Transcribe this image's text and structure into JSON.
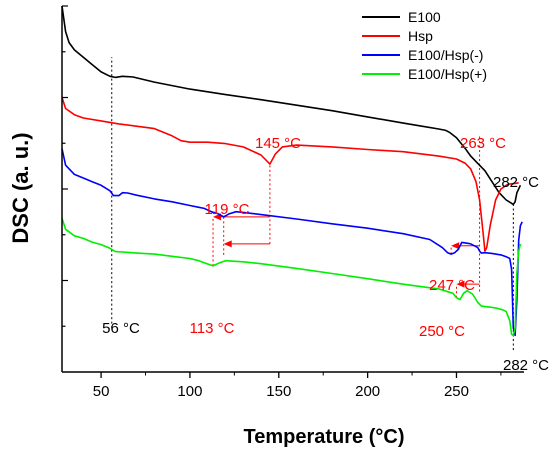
{
  "chart_data": {
    "type": "line",
    "title": "",
    "xlabel": "Temperature (°C)",
    "ylabel": "DSC (a. u.)",
    "xlim": [
      28,
      288
    ],
    "ylim": [
      0,
      100
    ],
    "x_ticks": [
      50,
      100,
      150,
      200,
      250
    ],
    "y_tick_labels_shown": false,
    "grid": false,
    "legend_position": "top-right",
    "series": [
      {
        "name": "E100",
        "color": "#000000",
        "points": [
          [
            28,
            100
          ],
          [
            30,
            93
          ],
          [
            32,
            90
          ],
          [
            35,
            88
          ],
          [
            40,
            86
          ],
          [
            45,
            84
          ],
          [
            50,
            82
          ],
          [
            55,
            80.8
          ],
          [
            58,
            80.5
          ],
          [
            62,
            80.8
          ],
          [
            68,
            80.6
          ],
          [
            80,
            79.2
          ],
          [
            100,
            77.3
          ],
          [
            120,
            75.8
          ],
          [
            140,
            74.4
          ],
          [
            160,
            72.9
          ],
          [
            180,
            71.4
          ],
          [
            200,
            69.7
          ],
          [
            220,
            68
          ],
          [
            240,
            66.4
          ],
          [
            244,
            66
          ],
          [
            246,
            65.5
          ],
          [
            250,
            64
          ],
          [
            255,
            61
          ],
          [
            258,
            59
          ],
          [
            262,
            57
          ],
          [
            266,
            55
          ],
          [
            270,
            52
          ],
          [
            274,
            49
          ],
          [
            278,
            47
          ],
          [
            282,
            45.8
          ],
          [
            283,
            46.5
          ],
          [
            284,
            49
          ],
          [
            286,
            51
          ]
        ]
      },
      {
        "name": "Hsp",
        "color": "#ff0000",
        "points": [
          [
            28,
            75
          ],
          [
            30,
            72
          ],
          [
            35,
            70.3
          ],
          [
            40,
            69.4
          ],
          [
            50,
            68.6
          ],
          [
            60,
            67.8
          ],
          [
            80,
            66.5
          ],
          [
            90,
            64.5
          ],
          [
            95,
            63.2
          ],
          [
            100,
            62.8
          ],
          [
            110,
            62.8
          ],
          [
            120,
            62.4
          ],
          [
            130,
            61.5
          ],
          [
            140,
            59.3
          ],
          [
            145,
            56.8
          ],
          [
            148,
            59.5
          ],
          [
            152,
            61.5
          ],
          [
            160,
            62
          ],
          [
            180,
            61.5
          ],
          [
            200,
            60.8
          ],
          [
            220,
            60.2
          ],
          [
            240,
            59
          ],
          [
            250,
            58.2
          ],
          [
            255,
            57
          ],
          [
            258,
            55.5
          ],
          [
            261,
            52
          ],
          [
            263,
            47
          ],
          [
            265,
            38
          ],
          [
            266,
            33
          ],
          [
            267,
            34
          ],
          [
            269,
            40
          ],
          [
            272,
            47
          ],
          [
            275,
            50
          ],
          [
            278,
            51
          ],
          [
            280,
            51.4
          ],
          [
            283,
            51.5
          ],
          [
            285,
            51.7
          ]
        ]
      },
      {
        "name": "E100/Hsp(-)",
        "color": "#0000ff",
        "points": [
          [
            28,
            61
          ],
          [
            30,
            56.5
          ],
          [
            35,
            54
          ],
          [
            40,
            53
          ],
          [
            45,
            52
          ],
          [
            50,
            51
          ],
          [
            55,
            49.5
          ],
          [
            57,
            48.2
          ],
          [
            60,
            48.2
          ],
          [
            62,
            49
          ],
          [
            65,
            48.9
          ],
          [
            70,
            48.3
          ],
          [
            80,
            47.3
          ],
          [
            90,
            46.5
          ],
          [
            100,
            45.5
          ],
          [
            105,
            45
          ],
          [
            108,
            44.7
          ],
          [
            112,
            43.8
          ],
          [
            116,
            43.2
          ],
          [
            119,
            42.4
          ],
          [
            122,
            43.2
          ],
          [
            126,
            43.8
          ],
          [
            130,
            43.6
          ],
          [
            140,
            43
          ],
          [
            160,
            41.8
          ],
          [
            180,
            40.5
          ],
          [
            200,
            39.3
          ],
          [
            220,
            37.8
          ],
          [
            235,
            36.2
          ],
          [
            242,
            34
          ],
          [
            245,
            32.6
          ],
          [
            247,
            32.2
          ],
          [
            249,
            32.6
          ],
          [
            251,
            33.5
          ],
          [
            253,
            35.4
          ],
          [
            256,
            35.2
          ],
          [
            258,
            35
          ],
          [
            260,
            34.5
          ],
          [
            262,
            34
          ],
          [
            263,
            33
          ],
          [
            264,
            32.5
          ],
          [
            266,
            32.6
          ],
          [
            270,
            32.4
          ],
          [
            275,
            32
          ],
          [
            278,
            31.5
          ],
          [
            280,
            31
          ],
          [
            281,
            28
          ],
          [
            282,
            12
          ],
          [
            283,
            10
          ],
          [
            284,
            20
          ],
          [
            285,
            36
          ],
          [
            286,
            40
          ],
          [
            287,
            41
          ]
        ]
      },
      {
        "name": "E100/Hsp(+)",
        "color": "#00ee00",
        "points": [
          [
            28,
            42
          ],
          [
            30,
            39
          ],
          [
            35,
            37.2
          ],
          [
            40,
            36.5
          ],
          [
            45,
            35.5
          ],
          [
            50,
            34.8
          ],
          [
            55,
            33.8
          ],
          [
            58,
            32.9
          ],
          [
            62,
            32.8
          ],
          [
            70,
            32.5
          ],
          [
            80,
            32.2
          ],
          [
            90,
            31.6
          ],
          [
            100,
            31
          ],
          [
            105,
            30.4
          ],
          [
            110,
            29.5
          ],
          [
            113,
            29
          ],
          [
            116,
            29.7
          ],
          [
            120,
            30.4
          ],
          [
            130,
            30.1
          ],
          [
            140,
            29.6
          ],
          [
            160,
            28.3
          ],
          [
            180,
            26.9
          ],
          [
            200,
            25.5
          ],
          [
            220,
            24
          ],
          [
            240,
            22.7
          ],
          [
            248,
            21.5
          ],
          [
            250,
            20.3
          ],
          [
            252,
            19.8
          ],
          [
            254,
            21.5
          ],
          [
            256,
            22.2
          ],
          [
            259,
            21.3
          ],
          [
            262,
            19
          ],
          [
            264,
            18
          ],
          [
            268,
            17.8
          ],
          [
            272,
            17.5
          ],
          [
            276,
            17
          ],
          [
            278,
            16.5
          ],
          [
            280,
            14
          ],
          [
            281,
            10.3
          ],
          [
            282,
            10
          ],
          [
            283,
            12
          ],
          [
            284,
            27
          ],
          [
            285,
            33
          ],
          [
            286,
            35
          ]
        ]
      }
    ],
    "annotations": [
      {
        "text": "56 °C",
        "color": "#000000",
        "x": 56
      },
      {
        "text": "145 °C",
        "color": "#ff0000",
        "x": 145
      },
      {
        "text": "119 °C",
        "color": "#ff0000",
        "x": 119
      },
      {
        "text": "113 °C",
        "color": "#ff0000",
        "x": 113
      },
      {
        "text": "263 °C",
        "color": "#ff0000",
        "x": 263
      },
      {
        "text": "247 °C",
        "color": "#ff0000",
        "x": 247
      },
      {
        "text": "250 °C",
        "color": "#ff0000",
        "x": 250
      },
      {
        "text": "282 °C",
        "color": "#000000",
        "x": 282
      },
      {
        "text": "282 °C",
        "color": "#000000",
        "x": 282
      }
    ],
    "reference_lines": [
      {
        "x": 56,
        "color": "#000000",
        "style": "dotted",
        "y_from": 12,
        "y_to": 86
      },
      {
        "x": 145,
        "color": "#ff0000",
        "style": "dotted",
        "y_from": 35,
        "y_to": 56.8
      },
      {
        "x": 119,
        "color": "#ff0000",
        "style": "dotted",
        "y_from": 32,
        "y_to": 42.4
      },
      {
        "x": 113,
        "color": "#ff0000",
        "style": "dotted",
        "y_from": 29,
        "y_to": 42.4
      },
      {
        "x": 263,
        "color": "#ff0000",
        "style": "dotted",
        "y_from": 22,
        "y_to": 65
      },
      {
        "x": 250,
        "color": "#ff0000",
        "style": "dotted",
        "y_from": 20.3,
        "y_to": 24
      },
      {
        "x": 247,
        "color": "#ff0000",
        "style": "dotted",
        "y_from": 32.2,
        "y_to": 34.5
      },
      {
        "x": 282,
        "color": "#000000",
        "style": "dotted",
        "y_from": 6,
        "y_to": 46
      }
    ],
    "arrows": [
      {
        "color": "#ff0000",
        "from_x": 145,
        "to_x": 119,
        "y": 35
      },
      {
        "color": "#ff0000",
        "from_x": 145,
        "to_x": 113,
        "y": 42.4
      },
      {
        "color": "#ff0000",
        "from_x": 263,
        "to_x": 247,
        "y": 34.5
      },
      {
        "color": "#ff0000",
        "from_x": 263,
        "to_x": 250,
        "y": 24
      }
    ]
  }
}
